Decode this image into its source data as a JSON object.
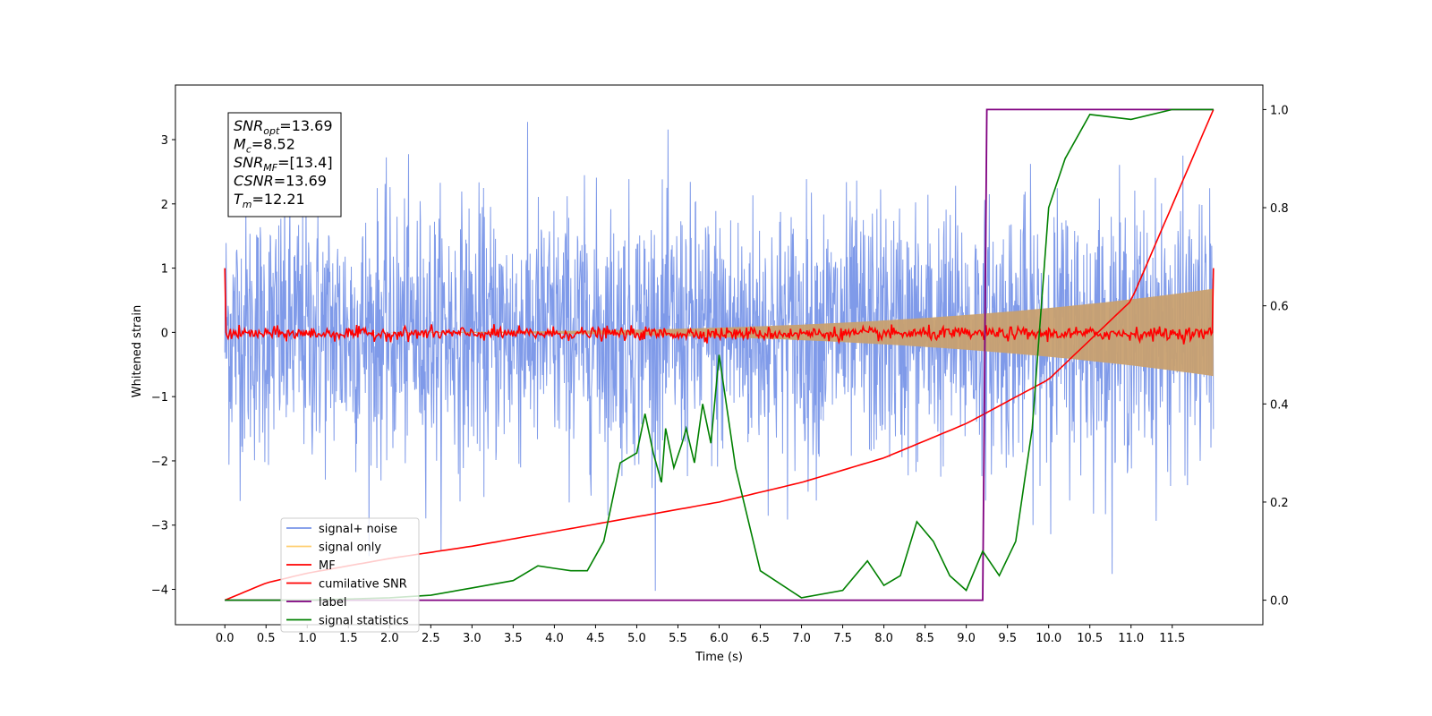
{
  "chart_data": {
    "type": "line",
    "title": "",
    "xlabel": "Time (s)",
    "ylabel": "Whitened strain",
    "xlim": [
      -0.6,
      12.6
    ],
    "ylim": [
      -4.55,
      3.85
    ],
    "ylim_right": [
      -0.05,
      1.05
    ],
    "x_ticks": [
      0.0,
      0.5,
      1.0,
      1.5,
      2.0,
      2.5,
      3.0,
      3.5,
      4.0,
      4.5,
      5.0,
      5.5,
      6.0,
      6.5,
      7.0,
      7.5,
      8.0,
      8.5,
      9.0,
      9.5,
      10.0,
      10.5,
      11.0,
      11.5
    ],
    "x_tick_labels": [
      "0.0",
      "0.5",
      "1.0",
      "1.5",
      "2.0",
      "2.5",
      "3.0",
      "3.5",
      "4.0",
      "4.5",
      "5.0",
      "5.5",
      "6.0",
      "6.5",
      "7.0",
      "7.5",
      "8.0",
      "8.5",
      "9.0",
      "9.5",
      "10.0",
      "10.5",
      "11.0",
      "11.5"
    ],
    "y_ticks": [
      3,
      2,
      1,
      0,
      -1,
      -2,
      -3,
      -4
    ],
    "y_tick_labels": [
      "3",
      "2",
      "1",
      "0",
      "−1",
      "−2",
      "−3",
      "−4"
    ],
    "y_right_ticks": [
      1.0,
      0.8,
      0.6,
      0.4,
      0.2,
      0.0
    ],
    "y_right_tick_labels": [
      "1.0",
      "0.8",
      "0.6",
      "0.4",
      "0.2",
      "0.0"
    ],
    "grid": false,
    "legend_position": "lower-left",
    "colors": {
      "noise": "#7895e8",
      "signal_fill": "#c8a070",
      "signal_only": "#ffcf70",
      "mf": "#ff0000",
      "csnr": "#ff0000",
      "label": "#800080",
      "stats": "#008000"
    },
    "info_box": [
      {
        "main": "SNR",
        "sub": "opt",
        "value": "=13.69",
        "italic": true
      },
      {
        "main": "M",
        "sub": "c",
        "value": "=8.52",
        "italic": true
      },
      {
        "main": "SNR",
        "sub": "MF",
        "value": "=[13.4]",
        "italic": true
      },
      {
        "main": "CSNR",
        "sub": "",
        "value": "=13.69",
        "italic": true
      },
      {
        "main": "T",
        "sub": "m",
        "value": "=12.21",
        "italic": true
      }
    ],
    "series": [
      {
        "name": "signal+ noise",
        "axis": "left",
        "description_points": [
          [
            0.0,
            -4.1
          ],
          [
            0.0,
            3.1
          ],
          [
            12.0,
            -3.1
          ],
          [
            12.0,
            2.6
          ]
        ],
        "envelope_low": -1.0,
        "envelope_high": 1.0
      },
      {
        "name": "signal only",
        "axis": "left",
        "amplitude_start": 0.0,
        "amplitude_end": 0.68,
        "x_start": 0.0,
        "x_end": 12.0
      },
      {
        "name": "MF",
        "axis": "left",
        "x_start": 0.0,
        "x_end": 12.0,
        "edge_value": 1.0,
        "baseline": -0.02
      },
      {
        "name": "cumilative SNR",
        "axis": "right",
        "x": [
          0.0,
          0.5,
          1.0,
          2.0,
          3.0,
          4.0,
          5.0,
          6.0,
          7.0,
          8.0,
          9.0,
          10.0,
          11.0,
          12.0
        ],
        "y": [
          0.0,
          0.035,
          0.055,
          0.085,
          0.11,
          0.14,
          0.17,
          0.2,
          0.24,
          0.29,
          0.36,
          0.45,
          0.61,
          1.0
        ]
      },
      {
        "name": "label",
        "axis": "right",
        "x": [
          0.0,
          9.2,
          9.25,
          12.0
        ],
        "y": [
          0.0,
          0.0,
          1.0,
          1.0
        ]
      },
      {
        "name": "signal statistics",
        "axis": "right",
        "x": [
          0.0,
          1.0,
          2.0,
          2.5,
          3.0,
          3.5,
          3.8,
          4.0,
          4.2,
          4.4,
          4.6,
          4.8,
          5.0,
          5.1,
          5.2,
          5.3,
          5.35,
          5.45,
          5.55,
          5.6,
          5.7,
          5.8,
          5.9,
          6.0,
          6.2,
          6.5,
          7.0,
          7.5,
          7.8,
          8.0,
          8.2,
          8.4,
          8.6,
          8.8,
          9.0,
          9.2,
          9.4,
          9.6,
          9.8,
          10.0,
          10.2,
          10.5,
          11.0,
          11.5,
          12.0
        ],
        "y": [
          0.0,
          0.0,
          0.005,
          0.01,
          0.025,
          0.04,
          0.07,
          0.065,
          0.06,
          0.06,
          0.12,
          0.28,
          0.3,
          0.38,
          0.3,
          0.24,
          0.35,
          0.27,
          0.32,
          0.35,
          0.28,
          0.4,
          0.32,
          0.5,
          0.27,
          0.06,
          0.005,
          0.02,
          0.08,
          0.03,
          0.05,
          0.16,
          0.12,
          0.05,
          0.02,
          0.1,
          0.05,
          0.12,
          0.35,
          0.8,
          0.9,
          0.99,
          0.98,
          1.0,
          1.0
        ]
      }
    ]
  }
}
